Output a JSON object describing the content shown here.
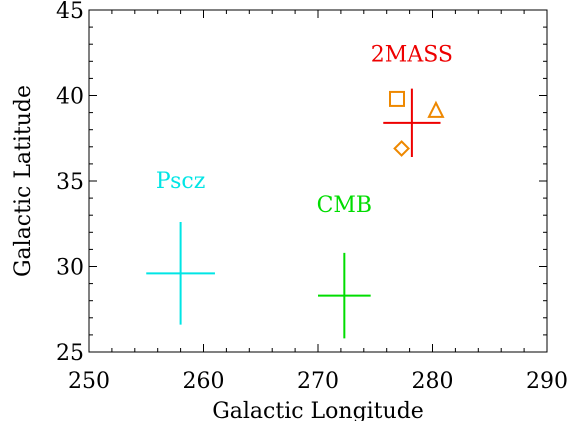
{
  "chart_data": {
    "type": "scatter",
    "title": "",
    "xlabel": "Galactic Longitude",
    "ylabel": "Galactic Latitude",
    "xlim": [
      250,
      290
    ],
    "ylim": [
      25,
      45
    ],
    "x_ticks": [
      250,
      260,
      270,
      280,
      290
    ],
    "y_ticks": [
      25,
      30,
      35,
      40,
      45
    ],
    "grid": false,
    "legend": "none",
    "points": [
      {
        "name": "Pscz",
        "x": 258.0,
        "y": 29.6,
        "xerr": 3.0,
        "yerr": 3.0,
        "color": "#00e5e5",
        "label_x": 258.0,
        "label_y": 34.6
      },
      {
        "name": "CMB",
        "x": 272.3,
        "y": 28.3,
        "xerr": 2.3,
        "yerr": 2.5,
        "color": "#00dd00",
        "label_x": 272.3,
        "label_y": 33.2
      },
      {
        "name": "2MASS",
        "x": 278.2,
        "y": 38.4,
        "xerr": 2.5,
        "yerr": 2.0,
        "color": "#ee0000",
        "label_x": 278.2,
        "label_y": 42.0
      }
    ],
    "markers": [
      {
        "shape": "square",
        "x": 276.9,
        "y": 39.8,
        "color": "#ee8800"
      },
      {
        "shape": "triangle",
        "x": 280.3,
        "y": 39.1,
        "color": "#ee8800"
      },
      {
        "shape": "diamond",
        "x": 277.3,
        "y": 36.9,
        "color": "#ee8800"
      }
    ]
  }
}
